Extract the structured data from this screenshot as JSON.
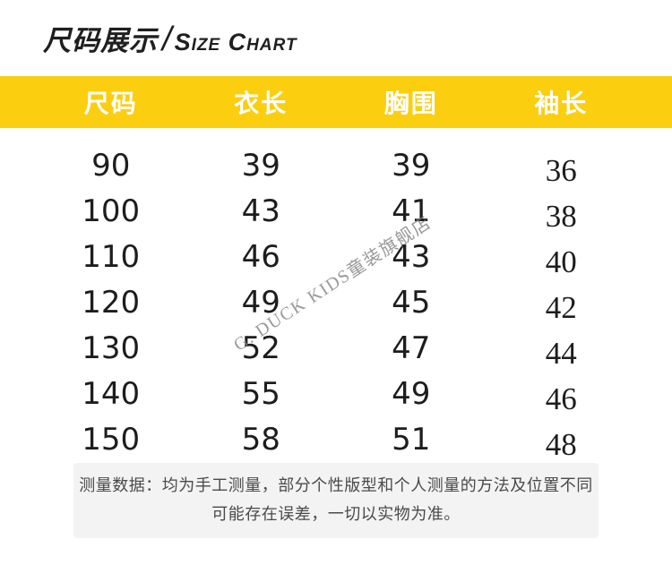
{
  "page_title": {
    "cn": "尺码展示",
    "slash": "/",
    "en": "Size Chart"
  },
  "chart_data": {
    "type": "table",
    "title": "尺码展示/SIZE CHART",
    "columns": [
      "尺码",
      "衣长",
      "胸围",
      "袖长"
    ],
    "rows": [
      [
        "90",
        "39",
        "39",
        "36"
      ],
      [
        "100",
        "43",
        "41",
        "38"
      ],
      [
        "110",
        "46",
        "43",
        "40"
      ],
      [
        "120",
        "49",
        "45",
        "42"
      ],
      [
        "130",
        "52",
        "47",
        "44"
      ],
      [
        "140",
        "55",
        "49",
        "46"
      ],
      [
        "150",
        "58",
        "51",
        "48"
      ]
    ]
  },
  "watermark": {
    "text": "G. DUCK KIDS童装旗舰店"
  },
  "footer": {
    "line1": "测量数据：均为手工测量，部分个性版型和个人测量的方法及位置不同",
    "line2": "可能存在误差，一切以实物为准。"
  },
  "colors": {
    "header_bg": "#fcce10",
    "header_text": "#ffffff",
    "title_text": "#1f1f1f",
    "body_text": "#1d1d1d",
    "watermark": "#808080",
    "footer_bg": "#f3f3f3",
    "footer_text": "#4a4a4a"
  }
}
